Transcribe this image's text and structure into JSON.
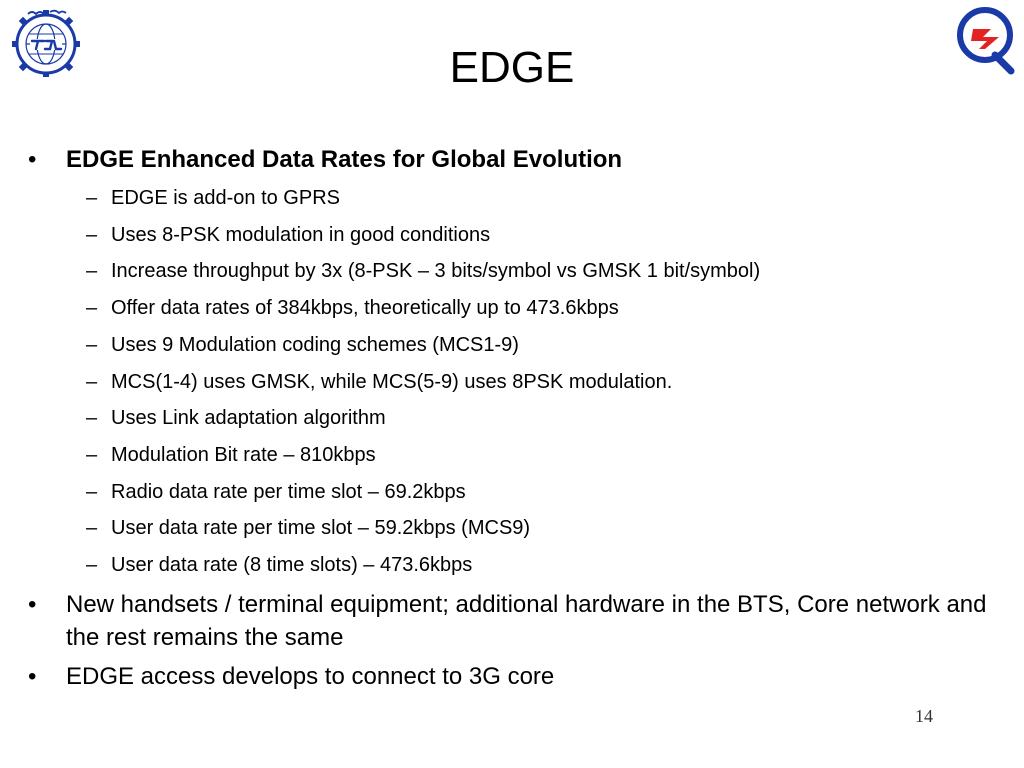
{
  "slide": {
    "title": "EDGE",
    "page_number": "14",
    "logos": {
      "left": "tcil-logo-icon",
      "right": "q-logo-icon"
    },
    "colors": {
      "logo_blue": "#1a3aa8",
      "logo_red": "#e32222"
    },
    "bullets": [
      {
        "text": "EDGE Enhanced Data Rates for Global Evolution",
        "bold": true,
        "sub": [
          "EDGE is add-on to GPRS",
          "Uses 8-PSK modulation in good conditions",
          "Increase throughput by 3x  (8-PSK – 3 bits/symbol vs GMSK 1 bit/symbol)",
          "Offer data rates of 384kbps, theoretically up to 473.6kbps",
          "Uses 9 Modulation coding schemes (MCS1-9)",
          "MCS(1-4) uses GMSK, while MCS(5-9) uses 8PSK modulation.",
          "Uses Link adaptation algorithm",
          "Modulation Bit rate – 810kbps",
          "Radio data rate per time slot – 69.2kbps",
          "User data rate per time slot – 59.2kbps (MCS9)",
          "User data rate (8 time slots) – 473.6kbps"
        ]
      },
      {
        "text": "New handsets / terminal equipment; additional hardware in the BTS, Core network and the rest remains the same",
        "bold": false,
        "sub": []
      },
      {
        "text": "EDGE access develops to connect to 3G core",
        "bold": false,
        "sub": []
      }
    ]
  }
}
